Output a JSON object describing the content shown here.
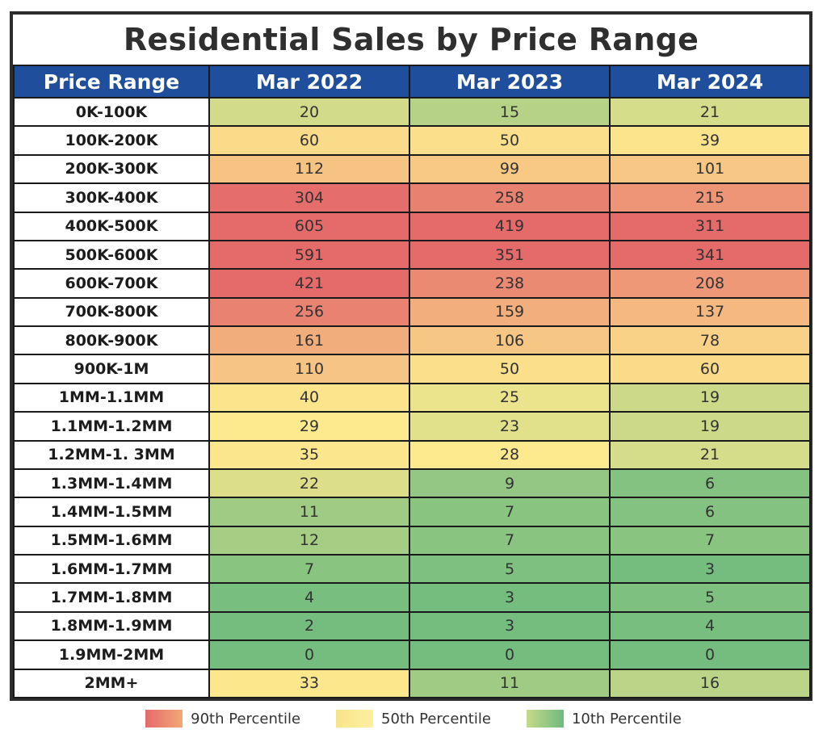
{
  "chart_data": {
    "type": "table",
    "title": "Residential Sales by Price Range",
    "columns": [
      "Price Range",
      "Mar 2022",
      "Mar 2023",
      "Mar 2024"
    ],
    "categories": [
      "0K-100K",
      "100K-200K",
      "200K-300K",
      "300K-400K",
      "400K-500K",
      "500K-600K",
      "600K-700K",
      "700K-800K",
      "800K-900K",
      "900K-1M",
      "1MM-1.1MM",
      "1.1MM-1.2MM",
      "1.2MM-1. 3MM",
      "1.3MM-1.4MM",
      "1.4MM-1.5MM",
      "1.5MM-1.6MM",
      "1.6MM-1.7MM",
      "1.7MM-1.8MM",
      "1.8MM-1.9MM",
      "1.9MM-2MM",
      "2MM+"
    ],
    "series": [
      {
        "name": "Mar 2022",
        "values": [
          20,
          60,
          112,
          304,
          605,
          591,
          421,
          256,
          161,
          110,
          40,
          29,
          35,
          22,
          11,
          12,
          7,
          4,
          2,
          0,
          33
        ]
      },
      {
        "name": "Mar 2023",
        "values": [
          15,
          50,
          99,
          258,
          419,
          351,
          238,
          159,
          106,
          50,
          25,
          23,
          28,
          9,
          7,
          7,
          5,
          3,
          3,
          0,
          11
        ]
      },
      {
        "name": "Mar 2024",
        "values": [
          21,
          39,
          101,
          215,
          311,
          341,
          208,
          137,
          78,
          60,
          19,
          19,
          21,
          6,
          6,
          7,
          3,
          5,
          4,
          0,
          16
        ]
      }
    ],
    "legend": [
      {
        "label": "90th Percentile",
        "colors": [
          "#e56a6a",
          "#f2a878"
        ]
      },
      {
        "label": "50th Percentile",
        "colors": [
          "#f8e488",
          "#fdf0a2"
        ]
      },
      {
        "label": "10th Percentile",
        "colors": [
          "#c6d98a",
          "#6fbb7f"
        ]
      }
    ],
    "color_scale": {
      "high": "#e56a6a",
      "mid": "#fde98e",
      "low": "#74bd7f"
    },
    "legend_position": "bottom"
  }
}
